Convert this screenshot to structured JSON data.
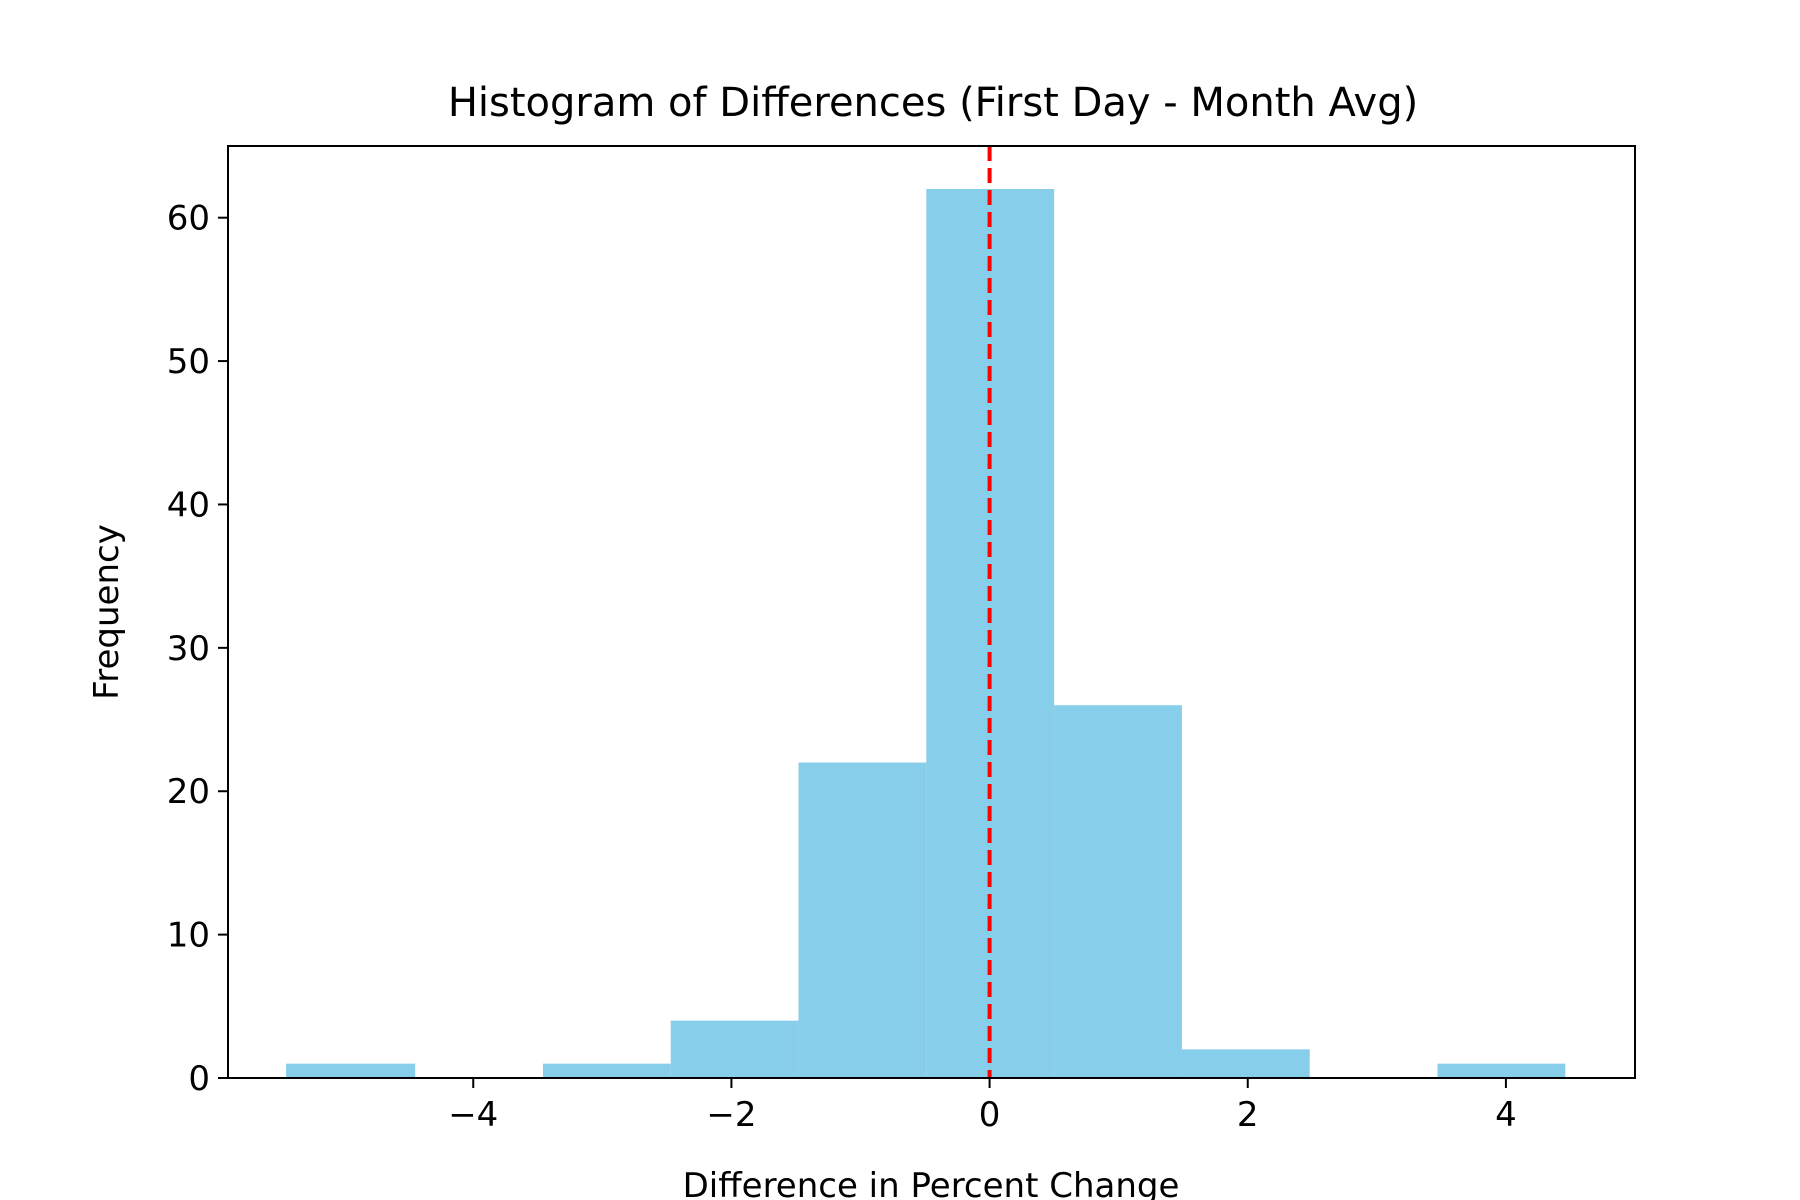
{
  "chart_data": {
    "type": "bar",
    "title": "Histogram of Differences (First Day - Month Avg)",
    "xlabel": "Difference in Percent Change",
    "ylabel": "Frequency",
    "xlim": [
      -5.9,
      5.0
    ],
    "ylim": [
      0,
      65
    ],
    "bins": [
      {
        "x0": -5.45,
        "x1": -4.45,
        "count": 1
      },
      {
        "x0": -4.45,
        "x1": -3.46,
        "count": 0
      },
      {
        "x0": -3.46,
        "x1": -2.47,
        "count": 1
      },
      {
        "x0": -2.47,
        "x1": -1.48,
        "count": 4
      },
      {
        "x0": -1.48,
        "x1": -0.49,
        "count": 22
      },
      {
        "x0": -0.49,
        "x1": 0.5,
        "count": 62
      },
      {
        "x0": 0.5,
        "x1": 1.49,
        "count": 26
      },
      {
        "x0": 1.49,
        "x1": 2.48,
        "count": 2
      },
      {
        "x0": 2.48,
        "x1": 3.47,
        "count": 0
      },
      {
        "x0": 3.47,
        "x1": 4.46,
        "count": 1
      }
    ],
    "x_ticks": [
      {
        "value": -4,
        "label": "−4"
      },
      {
        "value": -2,
        "label": "−2"
      },
      {
        "value": 0,
        "label": "0"
      },
      {
        "value": 2,
        "label": "2"
      },
      {
        "value": 4,
        "label": "4"
      }
    ],
    "y_ticks": [
      {
        "value": 0,
        "label": "0"
      },
      {
        "value": 10,
        "label": "10"
      },
      {
        "value": 20,
        "label": "20"
      },
      {
        "value": 30,
        "label": "30"
      },
      {
        "value": 40,
        "label": "40"
      },
      {
        "value": 50,
        "label": "50"
      },
      {
        "value": 60,
        "label": "60"
      }
    ],
    "reference_line": {
      "x": 0,
      "color": "#ff0000",
      "style": "dashed"
    },
    "bar_color": "#87ceeb",
    "grid": false
  }
}
